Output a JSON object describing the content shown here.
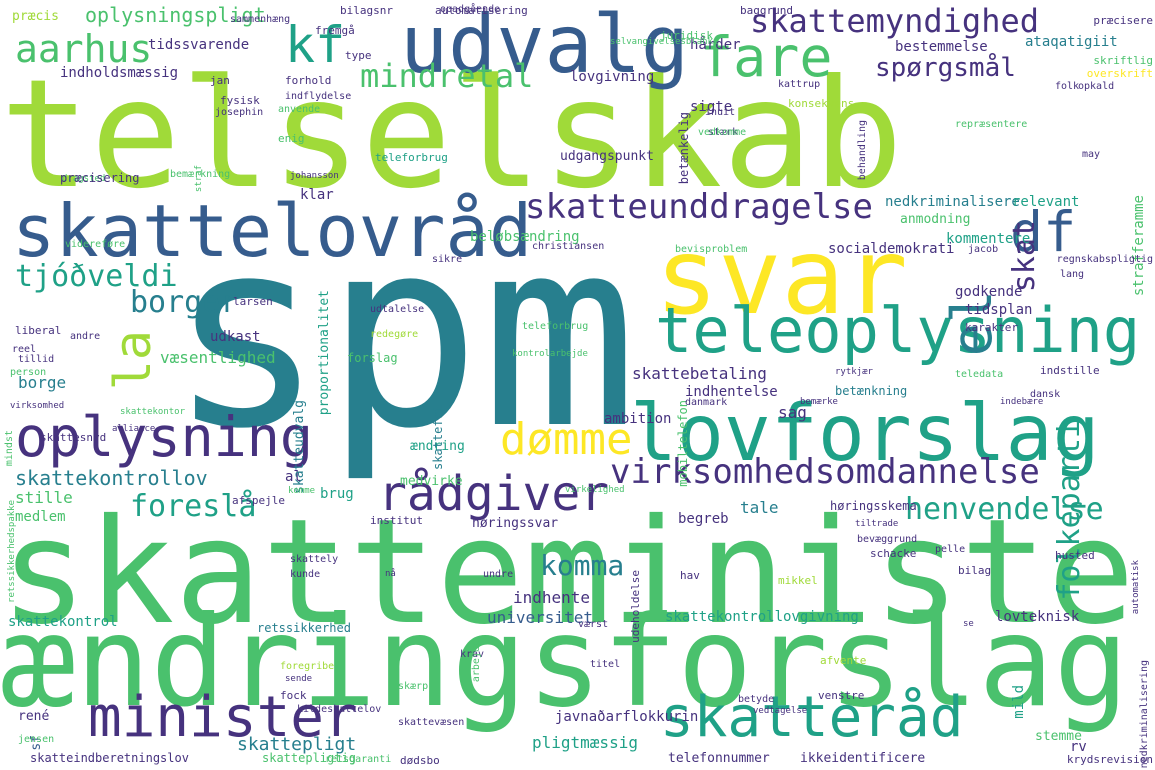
{
  "palette": {
    "dark_purple": "#46327e",
    "blue": "#365c8d",
    "teal": "#277f8e",
    "green_teal": "#1fa187",
    "green": "#4ac16d",
    "lime": "#a0da39",
    "yellow": "#fde725"
  },
  "words": [
    "telselskab",
    "spm",
    "skatteminister",
    "ændringsforslag",
    "svar",
    "udvalg",
    "lovforslag",
    "skattelovråd",
    "teleoplysning",
    "oplysning",
    "minister",
    "skatteråd",
    "fare",
    "dømme",
    "rådgiver",
    "virksomhedsomdannelse",
    "skatteunddragelse",
    "skattemyndighed",
    "df",
    "el",
    "la",
    "kf",
    "aarhus",
    "mindretal",
    "spørgsmål",
    "skat",
    "borger",
    "tjóðveldi",
    "henvendelse",
    "foreslå",
    "skattekontrollov",
    "folkeparti",
    "komma",
    "oplysningspligt",
    "præcis",
    "tidssvarende",
    "indholdsmæssig",
    "lovgivning",
    "sigte",
    "betænkelig",
    "stærk",
    "udgangspunkt",
    "teleforbrug",
    "skattebetaling",
    "sag",
    "indhentelse",
    "ambition",
    "ændring",
    "beløbsændring",
    "socialdemokrati",
    "nedkriminalisere",
    "relevant",
    "anmodning",
    "kommentere",
    "strafferamme",
    "godkende",
    "tidsplan",
    "karakter",
    "klar",
    "udkast",
    "væsentlighed",
    "borge",
    "stille",
    "medlem",
    "al",
    "skatteudvalg",
    "proportionalitet",
    "mobiltelefon",
    "skattefri",
    "forslag",
    "brug",
    "tale",
    "begreb",
    "høringssvar",
    "høringsskema",
    "betænkning",
    "medvirke",
    "universitet",
    "indhente",
    "skattekontrollovgivning",
    "lovteknisk",
    "skattekontrol",
    "retssikkerhed",
    "skattepligt",
    "pligtmæssig",
    "rv",
    "mild",
    "sf",
    "skatteindberetningslov",
    "skattepligtig",
    "hårder",
    "bestemmelse",
    "ataqatigiit",
    "overskrift",
    "skriftlig",
    "præcisere",
    "bilagsnr",
    "automatisering",
    "baggrund",
    "juridisk",
    "fremgå",
    "type",
    "selvangivelsesblanke",
    "jan",
    "fysisk",
    "josephin",
    "forhold",
    "indflydelse",
    "anvende",
    "enig",
    "inuit",
    "vedkomme",
    "behandling",
    "kattrup",
    "konsekvens",
    "opkald",
    "folk",
    "repræsentere",
    "may",
    "straf",
    "dragsted",
    "johansson",
    "christiansen",
    "videreføre",
    "bevisproblem",
    "jacob",
    "sikre",
    "lang",
    "regnskabspligtig",
    "larsen",
    "liberal",
    "andre",
    "reel",
    "tillid",
    "person",
    "udtalelse",
    "redegøre",
    "teleforbrug",
    "kontrolarbejde",
    "teledata",
    "indstille",
    "rytkjær",
    "virksomhed",
    "skattekontor",
    "alliance",
    "danmark",
    "bemærke",
    "indebære",
    "dansk",
    "skattesnyd",
    "retssikkerhedspakke",
    "komme",
    "virkelighed",
    "afspejle",
    "institut",
    "tiltrade",
    "bevæggrund",
    "pelle",
    "skattely",
    "kunde",
    "nå",
    "undre",
    "udeholdelse",
    "hav",
    "mikkel",
    "schacke",
    "bilag",
    "husted",
    "automatisk",
    "krav",
    "arbejde",
    "værst",
    "se",
    "titel",
    "afvente",
    "foregribe",
    "sende",
    "skærp",
    "fock",
    "kildeskattelov",
    "venstre",
    "betyde",
    "vedtagelse",
    "rené",
    "skattevæsen",
    "jensen",
    "javnaðarflokkurin",
    "stemme",
    "nedkriminalisering",
    "dødsbo",
    "telefonnummer",
    "ikkeidentificere",
    "krydsrevision",
    "retsgaranti",
    "opadgående",
    "sammenhæng",
    "bemærkning",
    "præcisering",
    "mindst"
  ]
}
